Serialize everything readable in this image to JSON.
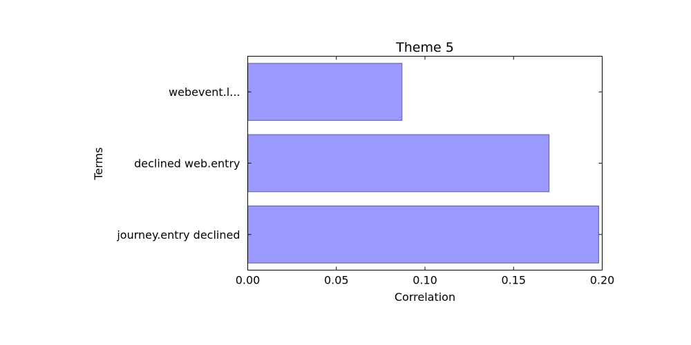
{
  "chart_data": {
    "type": "bar",
    "orientation": "horizontal",
    "title": "Theme 5",
    "xlabel": "Correlation",
    "ylabel": "Terms",
    "categories": [
      "journey.entry declined",
      "declined web.entry",
      "webevent.l..."
    ],
    "values": [
      0.198,
      0.17,
      0.087
    ],
    "xlim": [
      0.0,
      0.2
    ],
    "xticks": [
      0.0,
      0.05,
      0.1,
      0.15,
      0.2
    ],
    "xtick_labels": [
      "0.00",
      "0.05",
      "0.10",
      "0.15",
      "0.20"
    ],
    "grid": false,
    "legend": "none",
    "bar_color": "#9999ff",
    "bar_edge_color": "#6a6aa8"
  }
}
